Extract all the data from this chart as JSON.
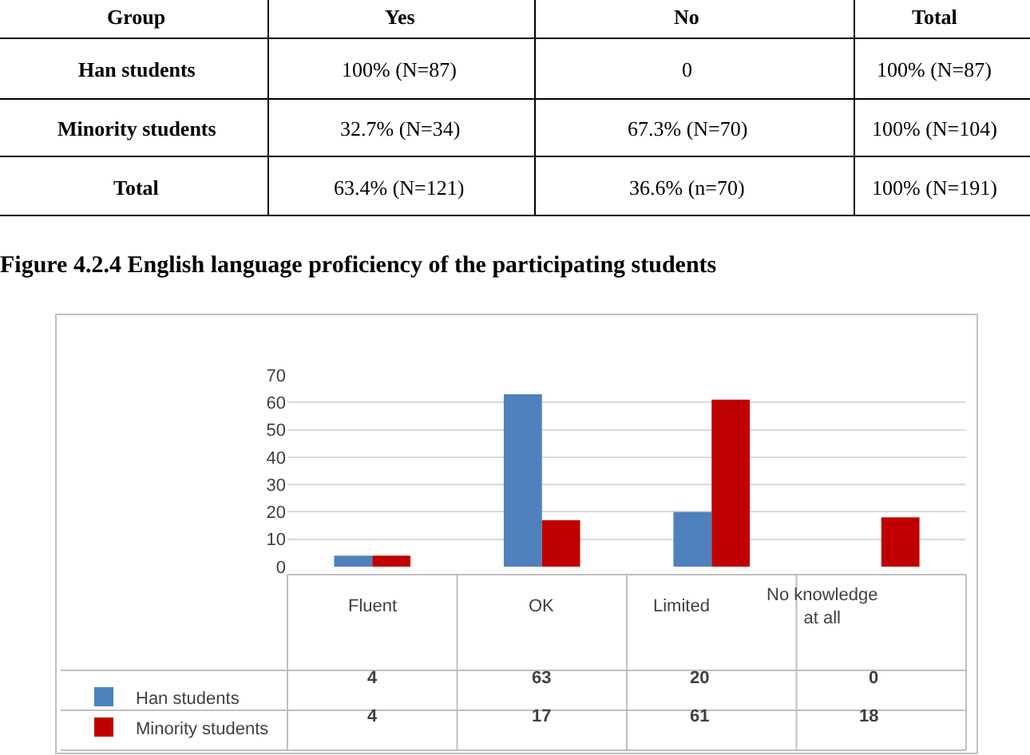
{
  "chart_data": [
    {
      "type": "other",
      "annotations": [
        "Group",
        "Yes",
        "No",
        "Total",
        "Han students",
        "100% (N=87)",
        "0",
        "100% (N=87)",
        "Minority students",
        "32.7% (N=34)",
        "67.3% (N=70)",
        "100% (N=104)",
        "Total",
        "63.4% (N=121)",
        "36.6% (n=70)",
        "100% (N=191)"
      ]
    },
    {
      "type": "bar",
      "title": "Figure 4.2.4 English language proficiency of the participating students",
      "categories": [
        "Fluent",
        "OK",
        "Limited",
        "No knowledge at all"
      ],
      "series": [
        {
          "name": "Han students",
          "color": "#4f81bd",
          "values": [
            4,
            63,
            20,
            0
          ]
        },
        {
          "name": "Minority students",
          "color": "#c00000",
          "values": [
            4,
            17,
            61,
            18
          ]
        }
      ],
      "ylim": [
        0,
        70
      ],
      "yticks": [
        0,
        10,
        20,
        30,
        40,
        50,
        60,
        70
      ],
      "grid": "y",
      "legend": "bottom",
      "data_labels": true
    }
  ]
}
